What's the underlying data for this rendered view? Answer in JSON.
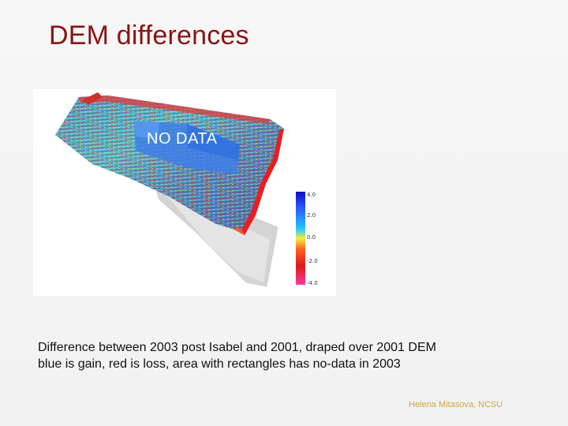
{
  "slide": {
    "title": "DEM differences",
    "figure": {
      "overlay_label": "NO DATA",
      "legend_ticks": [
        "4.0",
        "2.0",
        "0.0",
        "-2.0",
        "-4.0"
      ],
      "legend_colors": [
        "#1010c0",
        "#2a5cff",
        "#22c8ff",
        "#f0f040",
        "#ff6020",
        "#e01818",
        "#ff3a9a"
      ]
    },
    "caption": {
      "line1": "Difference between 2003 post Isabel and 2001, draped over 2001 DEM",
      "line2": "blue is gain, red is loss, area with rectangles has no-data in 2003"
    },
    "credit": "Helena Mitasova, NCSU"
  }
}
